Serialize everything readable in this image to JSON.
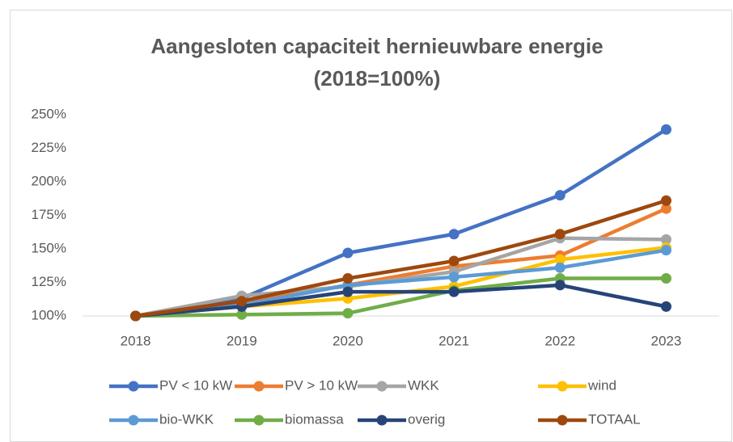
{
  "chart_data": {
    "type": "line",
    "title": [
      "Aangesloten capaciteit hernieuwbare energie",
      "(2018=100%)"
    ],
    "categories": [
      "2018",
      "2019",
      "2020",
      "2021",
      "2022",
      "2023"
    ],
    "series": [
      {
        "name": "PV < 10 kW",
        "color": "#4472c4",
        "values": [
          100,
          113,
          147,
          161,
          190,
          239
        ]
      },
      {
        "name": "PV > 10 kW",
        "color": "#ed7d31",
        "values": [
          100,
          110,
          123,
          137,
          145,
          180
        ]
      },
      {
        "name": "WKK",
        "color": "#a5a5a5",
        "values": [
          100,
          115,
          122,
          133,
          158,
          157
        ]
      },
      {
        "name": "wind",
        "color": "#ffc000",
        "values": [
          100,
          107,
          113,
          122,
          142,
          151
        ]
      },
      {
        "name": "bio-WKK",
        "color": "#5b9bd5",
        "values": [
          100,
          108,
          123,
          129,
          136,
          149
        ]
      },
      {
        "name": "biomassa",
        "color": "#70ad47",
        "values": [
          100,
          101,
          102,
          119,
          128,
          128
        ]
      },
      {
        "name": "overig",
        "color": "#264478",
        "values": [
          100,
          107,
          118,
          118,
          123,
          107
        ]
      },
      {
        "name": "TOTAAL",
        "color": "#9e480e",
        "values": [
          100,
          111,
          128,
          141,
          161,
          186
        ]
      }
    ],
    "ylim": [
      100,
      250
    ],
    "yticks": [
      {
        "value": 100,
        "label": "100%"
      },
      {
        "value": 125,
        "label": "125%"
      },
      {
        "value": 150,
        "label": "150%"
      },
      {
        "value": 175,
        "label": "175%"
      },
      {
        "value": 200,
        "label": "200%"
      },
      {
        "value": 225,
        "label": "225%"
      },
      {
        "value": 250,
        "label": "250%"
      }
    ],
    "legend": "bottom"
  }
}
